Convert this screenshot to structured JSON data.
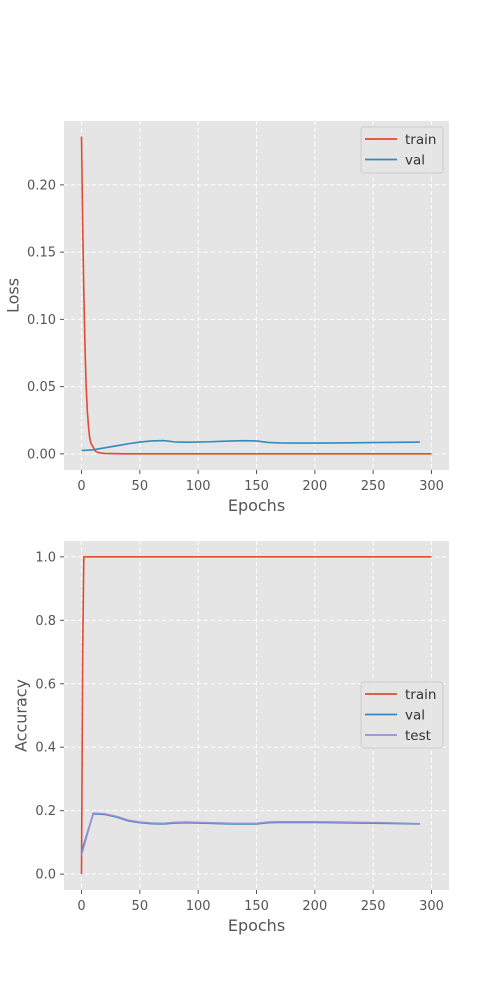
{
  "colors": {
    "background": "#E5E5E5",
    "grid": "#FFFFFF",
    "train": "#E24A33",
    "val": "#348ABD",
    "test": "#988ED5"
  },
  "chart_data": [
    {
      "type": "line",
      "xlabel": "Epochs",
      "ylabel": "Loss",
      "xlim": [
        -15,
        315
      ],
      "ylim": [
        -0.012,
        0.2475
      ],
      "xticks": [
        0,
        50,
        100,
        150,
        200,
        250,
        300
      ],
      "yticks": [
        0.0,
        0.05,
        0.1,
        0.15,
        0.2
      ],
      "ytick_labels": [
        "0.00",
        "0.05",
        "0.10",
        "0.15",
        "0.20"
      ],
      "grid": true,
      "legend": "top-right",
      "series": [
        {
          "name": "train",
          "color": "#E24A33",
          "x": [
            0,
            1,
            2,
            3,
            4,
            5,
            6,
            7,
            8,
            10,
            12,
            15,
            20,
            30,
            50,
            100,
            150,
            200,
            250,
            300
          ],
          "y": [
            0.236,
            0.17,
            0.12,
            0.08,
            0.05,
            0.032,
            0.02,
            0.012,
            0.008,
            0.005,
            0.002,
            0.0008,
            0.0003,
            0.0001,
            0.0,
            0.0,
            0.0,
            0.0,
            0.0,
            0.0
          ]
        },
        {
          "name": "val",
          "color": "#348ABD",
          "x": [
            0,
            10,
            20,
            30,
            40,
            50,
            60,
            70,
            80,
            90,
            100,
            110,
            120,
            130,
            140,
            150,
            160,
            170,
            180,
            200,
            220,
            240,
            260,
            280,
            290
          ],
          "y": [
            0.0025,
            0.003,
            0.0045,
            0.006,
            0.0075,
            0.0088,
            0.0096,
            0.0099,
            0.0089,
            0.0087,
            0.0088,
            0.009,
            0.0093,
            0.0096,
            0.0098,
            0.0096,
            0.0085,
            0.0081,
            0.008,
            0.008,
            0.0081,
            0.0083,
            0.0085,
            0.0087,
            0.0088
          ]
        }
      ]
    },
    {
      "type": "line",
      "xlabel": "Epochs",
      "ylabel": "Accuracy",
      "xlim": [
        -15,
        315
      ],
      "ylim": [
        -0.05,
        1.05
      ],
      "xticks": [
        0,
        50,
        100,
        150,
        200,
        250,
        300
      ],
      "yticks": [
        0.0,
        0.2,
        0.4,
        0.6,
        0.8,
        1.0
      ],
      "ytick_labels": [
        "0.0",
        "0.2",
        "0.4",
        "0.6",
        "0.8",
        "1.0"
      ],
      "grid": true,
      "legend": "center-right",
      "series": [
        {
          "name": "train",
          "color": "#E24A33",
          "x": [
            0,
            1,
            2,
            300
          ],
          "y": [
            0.0,
            0.7,
            1.0,
            1.0
          ]
        },
        {
          "name": "val",
          "color": "#348ABD",
          "x": [
            0,
            10,
            20,
            30,
            40,
            50,
            60,
            70,
            80,
            90,
            100,
            110,
            120,
            130,
            140,
            150,
            160,
            170,
            180,
            200,
            220,
            240,
            260,
            280,
            290
          ],
          "y": [
            0.07,
            0.19,
            0.188,
            0.18,
            0.168,
            0.162,
            0.159,
            0.158,
            0.161,
            0.162,
            0.161,
            0.16,
            0.159,
            0.158,
            0.158,
            0.158,
            0.162,
            0.163,
            0.163,
            0.163,
            0.162,
            0.161,
            0.16,
            0.159,
            0.158
          ]
        },
        {
          "name": "test",
          "color": "#988ED5",
          "x": [
            0,
            10,
            20,
            30,
            40,
            50,
            60,
            70,
            80,
            90,
            100,
            110,
            120,
            130,
            140,
            150,
            160,
            170,
            180,
            200,
            220,
            240,
            260,
            280,
            290
          ],
          "y": [
            0.06,
            0.192,
            0.19,
            0.182,
            0.17,
            0.164,
            0.161,
            0.16,
            0.163,
            0.164,
            0.163,
            0.162,
            0.161,
            0.16,
            0.16,
            0.16,
            0.164,
            0.165,
            0.165,
            0.165,
            0.164,
            0.163,
            0.162,
            0.16,
            0.159
          ]
        }
      ]
    }
  ]
}
